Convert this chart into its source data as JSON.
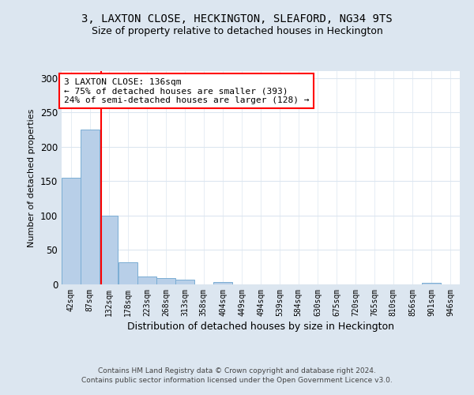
{
  "title": "3, LAXTON CLOSE, HECKINGTON, SLEAFORD, NG34 9TS",
  "subtitle": "Size of property relative to detached houses in Heckington",
  "xlabel": "Distribution of detached houses by size in Heckington",
  "ylabel": "Number of detached properties",
  "footnote1": "Contains HM Land Registry data © Crown copyright and database right 2024.",
  "footnote2": "Contains public sector information licensed under the Open Government Licence v3.0.",
  "bar_edges": [
    42,
    87,
    132,
    178,
    223,
    268,
    313,
    358,
    404,
    449,
    494,
    539,
    584,
    630,
    675,
    720,
    765,
    810,
    856,
    901,
    946
  ],
  "bar_values": [
    155,
    225,
    100,
    32,
    12,
    9,
    7,
    0,
    3,
    0,
    0,
    0,
    0,
    0,
    0,
    0,
    0,
    0,
    0,
    2,
    0
  ],
  "bar_color": "#b8cfe8",
  "bar_edge_color": "#7aadd4",
  "property_line_x": 136,
  "property_line_color": "red",
  "annotation_text": "3 LAXTON CLOSE: 136sqm\n← 75% of detached houses are smaller (393)\n24% of semi-detached houses are larger (128) →",
  "annotation_box_color": "white",
  "annotation_box_edge_color": "red",
  "ylim": [
    0,
    310
  ],
  "yticks": [
    0,
    50,
    100,
    150,
    200,
    250,
    300
  ],
  "background_color": "#dce6f0",
  "plot_background": "#ffffff",
  "grid_color": "#dce6f0",
  "title_fontsize": 10,
  "subtitle_fontsize": 9,
  "tick_label_fontsize": 7,
  "annotation_fontsize": 8,
  "ylabel_fontsize": 8,
  "xlabel_fontsize": 9
}
